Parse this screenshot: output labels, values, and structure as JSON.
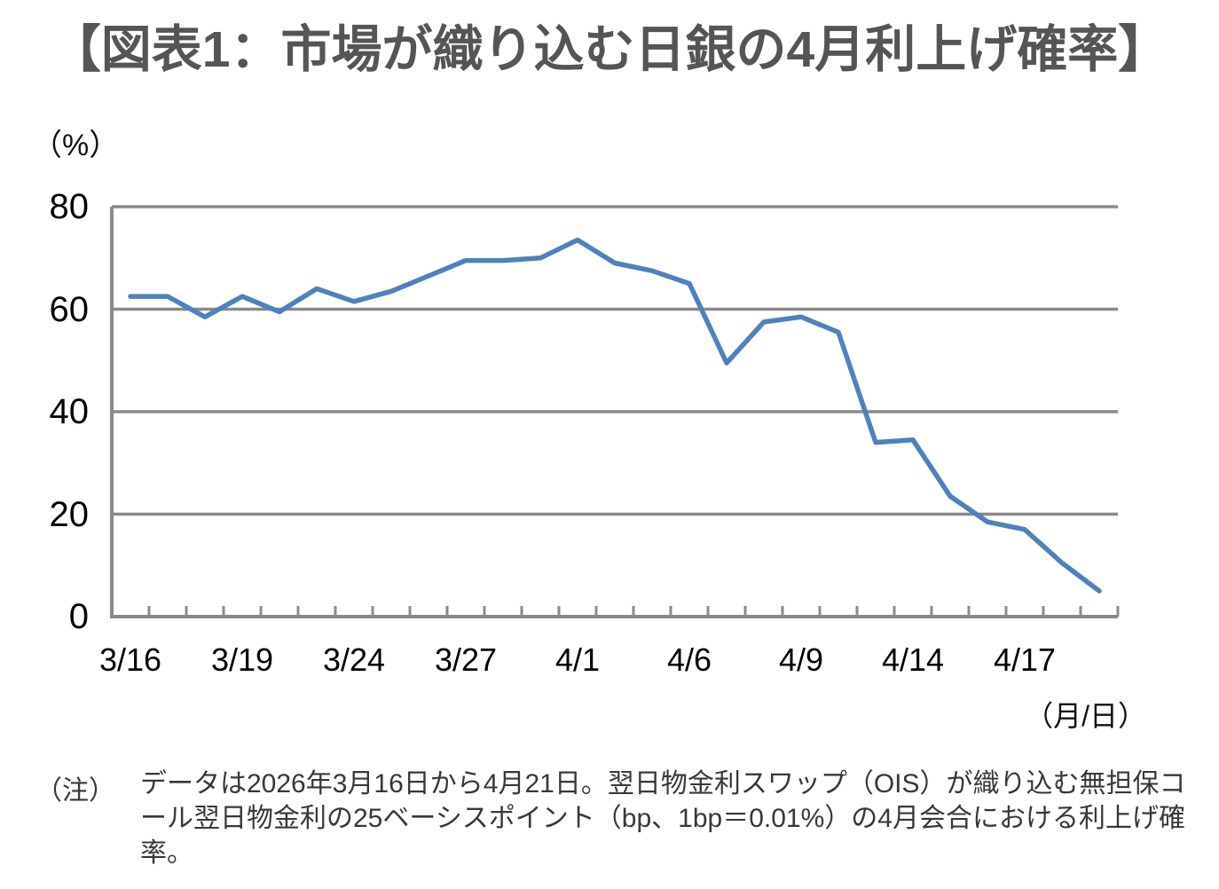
{
  "title": "【図表1：市場が織り込む日銀の4月利上げ確率】",
  "y_axis": {
    "unit_label": "（%）",
    "ticks": [
      "80",
      "60",
      "40",
      "20",
      "0"
    ]
  },
  "x_axis": {
    "unit_label": "（月/日）",
    "tick_labels": [
      "3/16",
      "3/19",
      "3/24",
      "3/27",
      "4/1",
      "4/6",
      "4/9",
      "4/14",
      "4/17"
    ]
  },
  "note": {
    "label": "（注）",
    "text": "データは2026年3月16日から4月21日。翌日物金利スワップ（OIS）が織り込む無担保コール翌日物金利の25ベーシスポイント（bp、1bp＝0.01%）の4月会合における利上げ確率。"
  },
  "colors": {
    "line": "#4F81BD",
    "grid": "#8A8A8A",
    "title_text": "#555555",
    "axis_text": "#000000",
    "note_text": "#383838"
  },
  "chart_data": {
    "type": "line",
    "title": "市場が織り込む日銀の4月利上げ確率",
    "x": [
      "3/16",
      "3/17",
      "3/18",
      "3/19",
      "3/20",
      "3/23",
      "3/24",
      "3/25",
      "3/26",
      "3/27",
      "3/30",
      "3/31",
      "4/1",
      "4/2",
      "4/3",
      "4/6",
      "4/7",
      "4/8",
      "4/9",
      "4/10",
      "4/13",
      "4/14",
      "4/15",
      "4/16",
      "4/17",
      "4/20",
      "4/21"
    ],
    "values": [
      62.5,
      62.5,
      58.5,
      62.5,
      59.5,
      64,
      61.5,
      63.5,
      66.5,
      69.5,
      69.5,
      70,
      73.5,
      69,
      67.5,
      65,
      49.5,
      57.5,
      58.5,
      55.5,
      34,
      34.5,
      23.5,
      18.5,
      17,
      10.5,
      5
    ],
    "series_name": "4月利上げ確率",
    "xlabel": "（月/日）",
    "ylabel": "（%）",
    "ylim": [
      0,
      80
    ],
    "ytick_interval": 20,
    "xtick_shown_every": 3,
    "grid": "horizontal",
    "legend": "none",
    "line_color": "#4F81BD"
  }
}
